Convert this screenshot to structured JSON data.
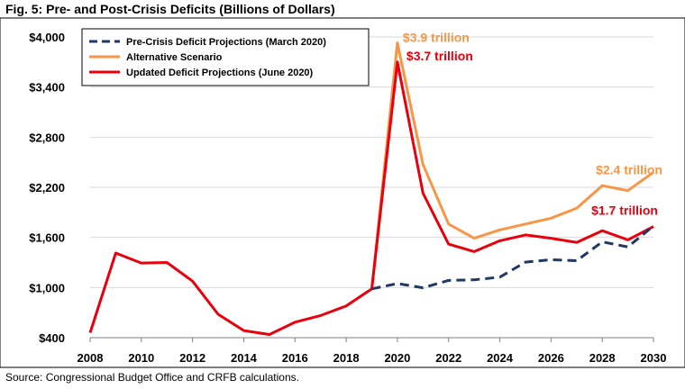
{
  "title": "Fig. 5: Pre- and Post-Crisis Deficits (Billions of Dollars)",
  "source": "Source: Congressional Budget Office and CRFB calculations.",
  "chart_data": {
    "type": "line",
    "x_ticks": [
      2008,
      2010,
      2012,
      2014,
      2016,
      2018,
      2020,
      2022,
      2024,
      2026,
      2028,
      2030
    ],
    "y_ticks": [
      400,
      1000,
      1600,
      2200,
      2800,
      3400,
      4000
    ],
    "y_tick_labels": [
      "$400",
      "$1,000",
      "$1,600",
      "$2,200",
      "$2,800",
      "$3,400",
      "$4,000"
    ],
    "xlim": [
      2008,
      2030
    ],
    "ylim": [
      400,
      4000
    ],
    "grid": "horizontal",
    "legend_position": "top-left",
    "series": [
      {
        "name": "Pre-Crisis Deficit Projections (March 2020)",
        "color": "#1f3864",
        "style": "dashed",
        "x": [
          2019,
          2020,
          2021,
          2022,
          2023,
          2024,
          2025,
          2026,
          2027,
          2028,
          2029,
          2030
        ],
        "values": [
          984,
          1048,
          997,
          1086,
          1093,
          1124,
          1304,
          1333,
          1322,
          1547,
          1487,
          1736
        ]
      },
      {
        "name": "Alternative Scenario",
        "color": "#f79646",
        "style": "solid",
        "x": [
          2019,
          2020,
          2021,
          2022,
          2023,
          2024,
          2025,
          2026,
          2027,
          2028,
          2029,
          2030
        ],
        "values": [
          984,
          3929,
          2473,
          1760,
          1590,
          1690,
          1760,
          1830,
          1950,
          2220,
          2160,
          2380
        ]
      },
      {
        "name": "Updated Deficit Projections (June 2020)",
        "color": "#e8000d",
        "style": "solid",
        "x": [
          2008,
          2009,
          2010,
          2011,
          2012,
          2013,
          2014,
          2015,
          2016,
          2017,
          2018,
          2019,
          2020,
          2021,
          2022,
          2023,
          2024,
          2025,
          2026,
          2027,
          2028,
          2029,
          2030
        ],
        "values": [
          459,
          1413,
          1294,
          1300,
          1077,
          680,
          485,
          438,
          585,
          665,
          779,
          984,
          3700,
          2130,
          1520,
          1430,
          1560,
          1630,
          1590,
          1540,
          1680,
          1570,
          1730
        ]
      }
    ],
    "annotations": [
      {
        "text": "$3.9 trillion",
        "color": "#f79646",
        "x": 2020,
        "y": 3929
      },
      {
        "text": "$3.7 trillion",
        "color": "#e8000d",
        "x": 2020,
        "y": 3700
      },
      {
        "text": "$2.4 trillion",
        "color": "#f79646",
        "x": 2030,
        "y": 2380
      },
      {
        "text": "$1.7 trillion",
        "color": "#e8000d",
        "x": 2030,
        "y": 1730
      }
    ]
  }
}
